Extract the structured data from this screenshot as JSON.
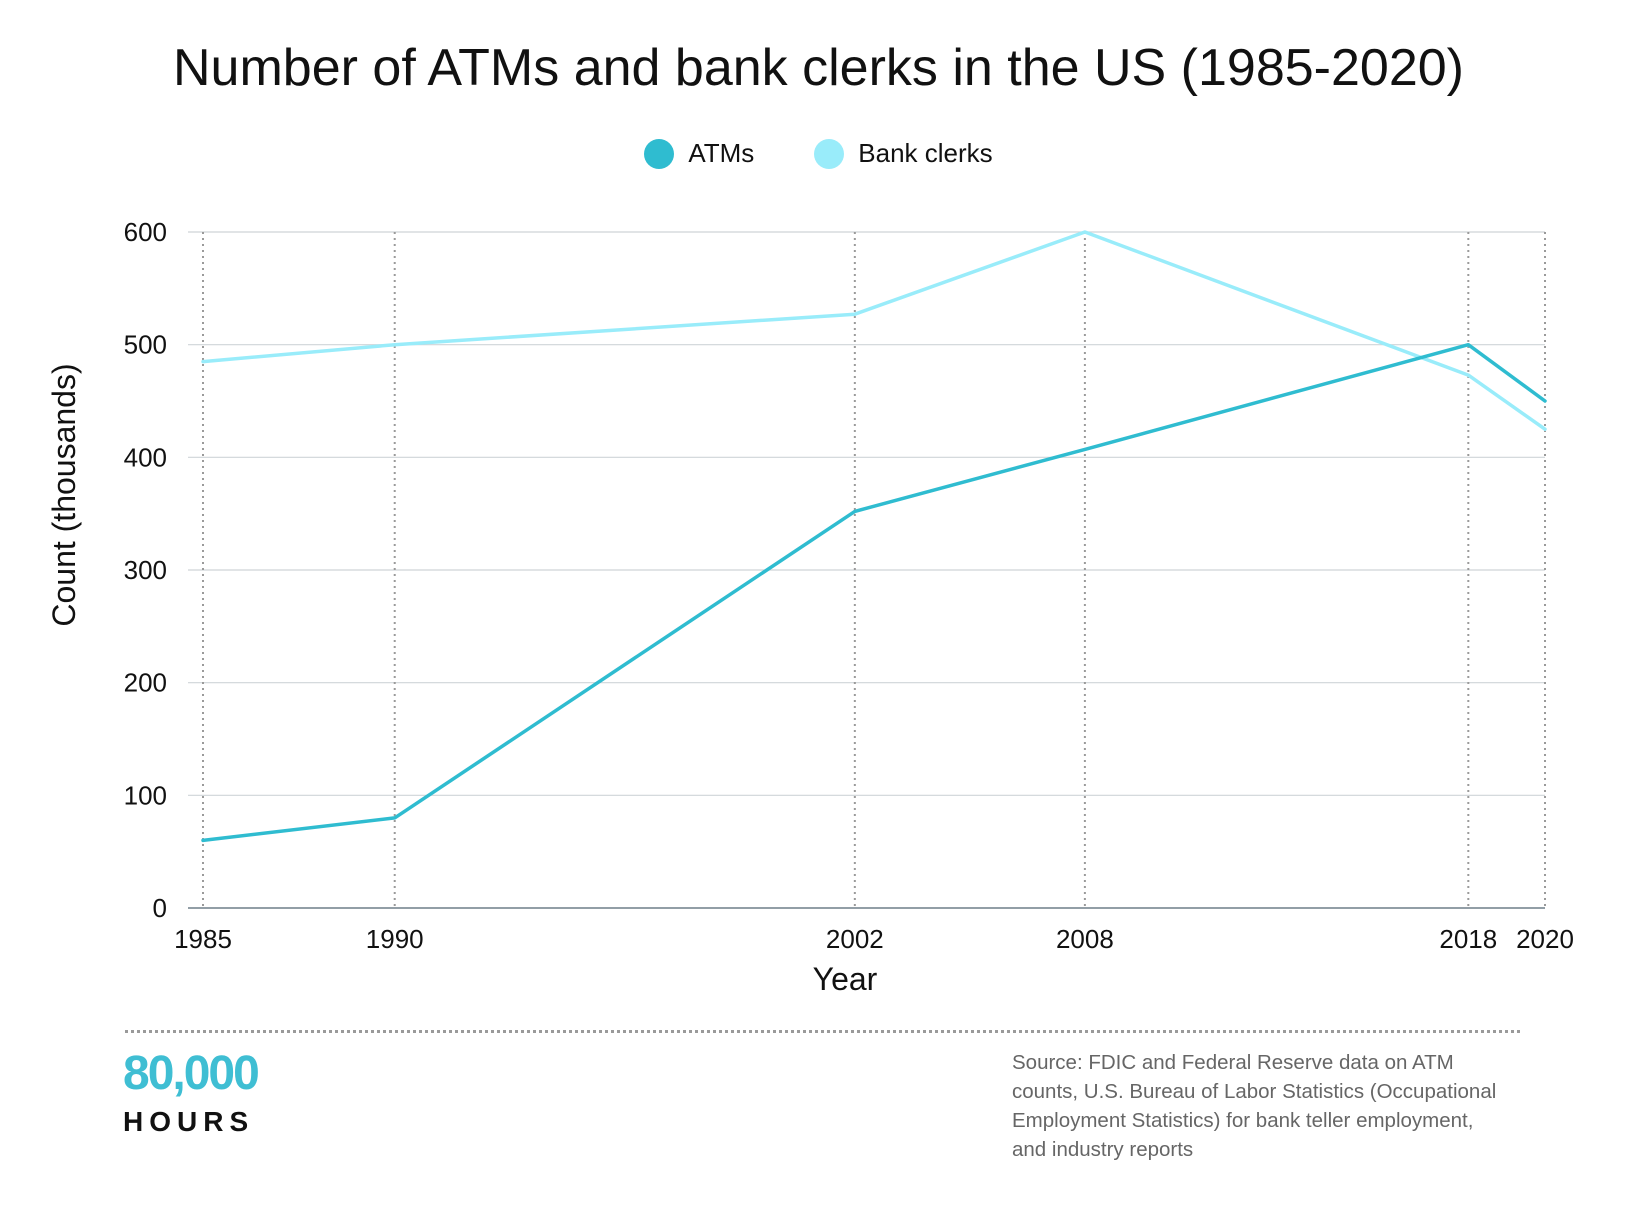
{
  "chart_data": {
    "type": "line",
    "title": "Number of ATMs and bank clerks in the US (1985-2020)",
    "xlabel": "Year",
    "ylabel": "Count (thousands)",
    "x": [
      1985,
      1990,
      2002,
      2008,
      2018,
      2020
    ],
    "x_tick_labels": [
      "1985",
      "1990",
      "2002",
      "2008",
      "2018",
      "2020"
    ],
    "xlim": [
      1985,
      2020
    ],
    "ylim": [
      0,
      600
    ],
    "y_ticks": [
      0,
      100,
      200,
      300,
      400,
      500,
      600
    ],
    "y_tick_labels": [
      "0",
      "100",
      "200",
      "300",
      "400",
      "500",
      "600"
    ],
    "grid": true,
    "legend_position": "top-center",
    "series": [
      {
        "name": "ATMs",
        "color": "#2fbcd0",
        "values": [
          60,
          80,
          352,
          407,
          500,
          450
        ]
      },
      {
        "name": "Bank clerks",
        "color": "#99ecfa",
        "values": [
          485,
          500,
          527,
          600,
          473,
          425
        ]
      }
    ]
  },
  "footer": {
    "logo_number": "80,000",
    "logo_word": "HOURS",
    "source": "Source: FDIC and Federal Reserve data on ATM counts, U.S. Bureau of Labor Statistics (Occupational Employment Statistics) for bank teller employment, and industry reports"
  }
}
